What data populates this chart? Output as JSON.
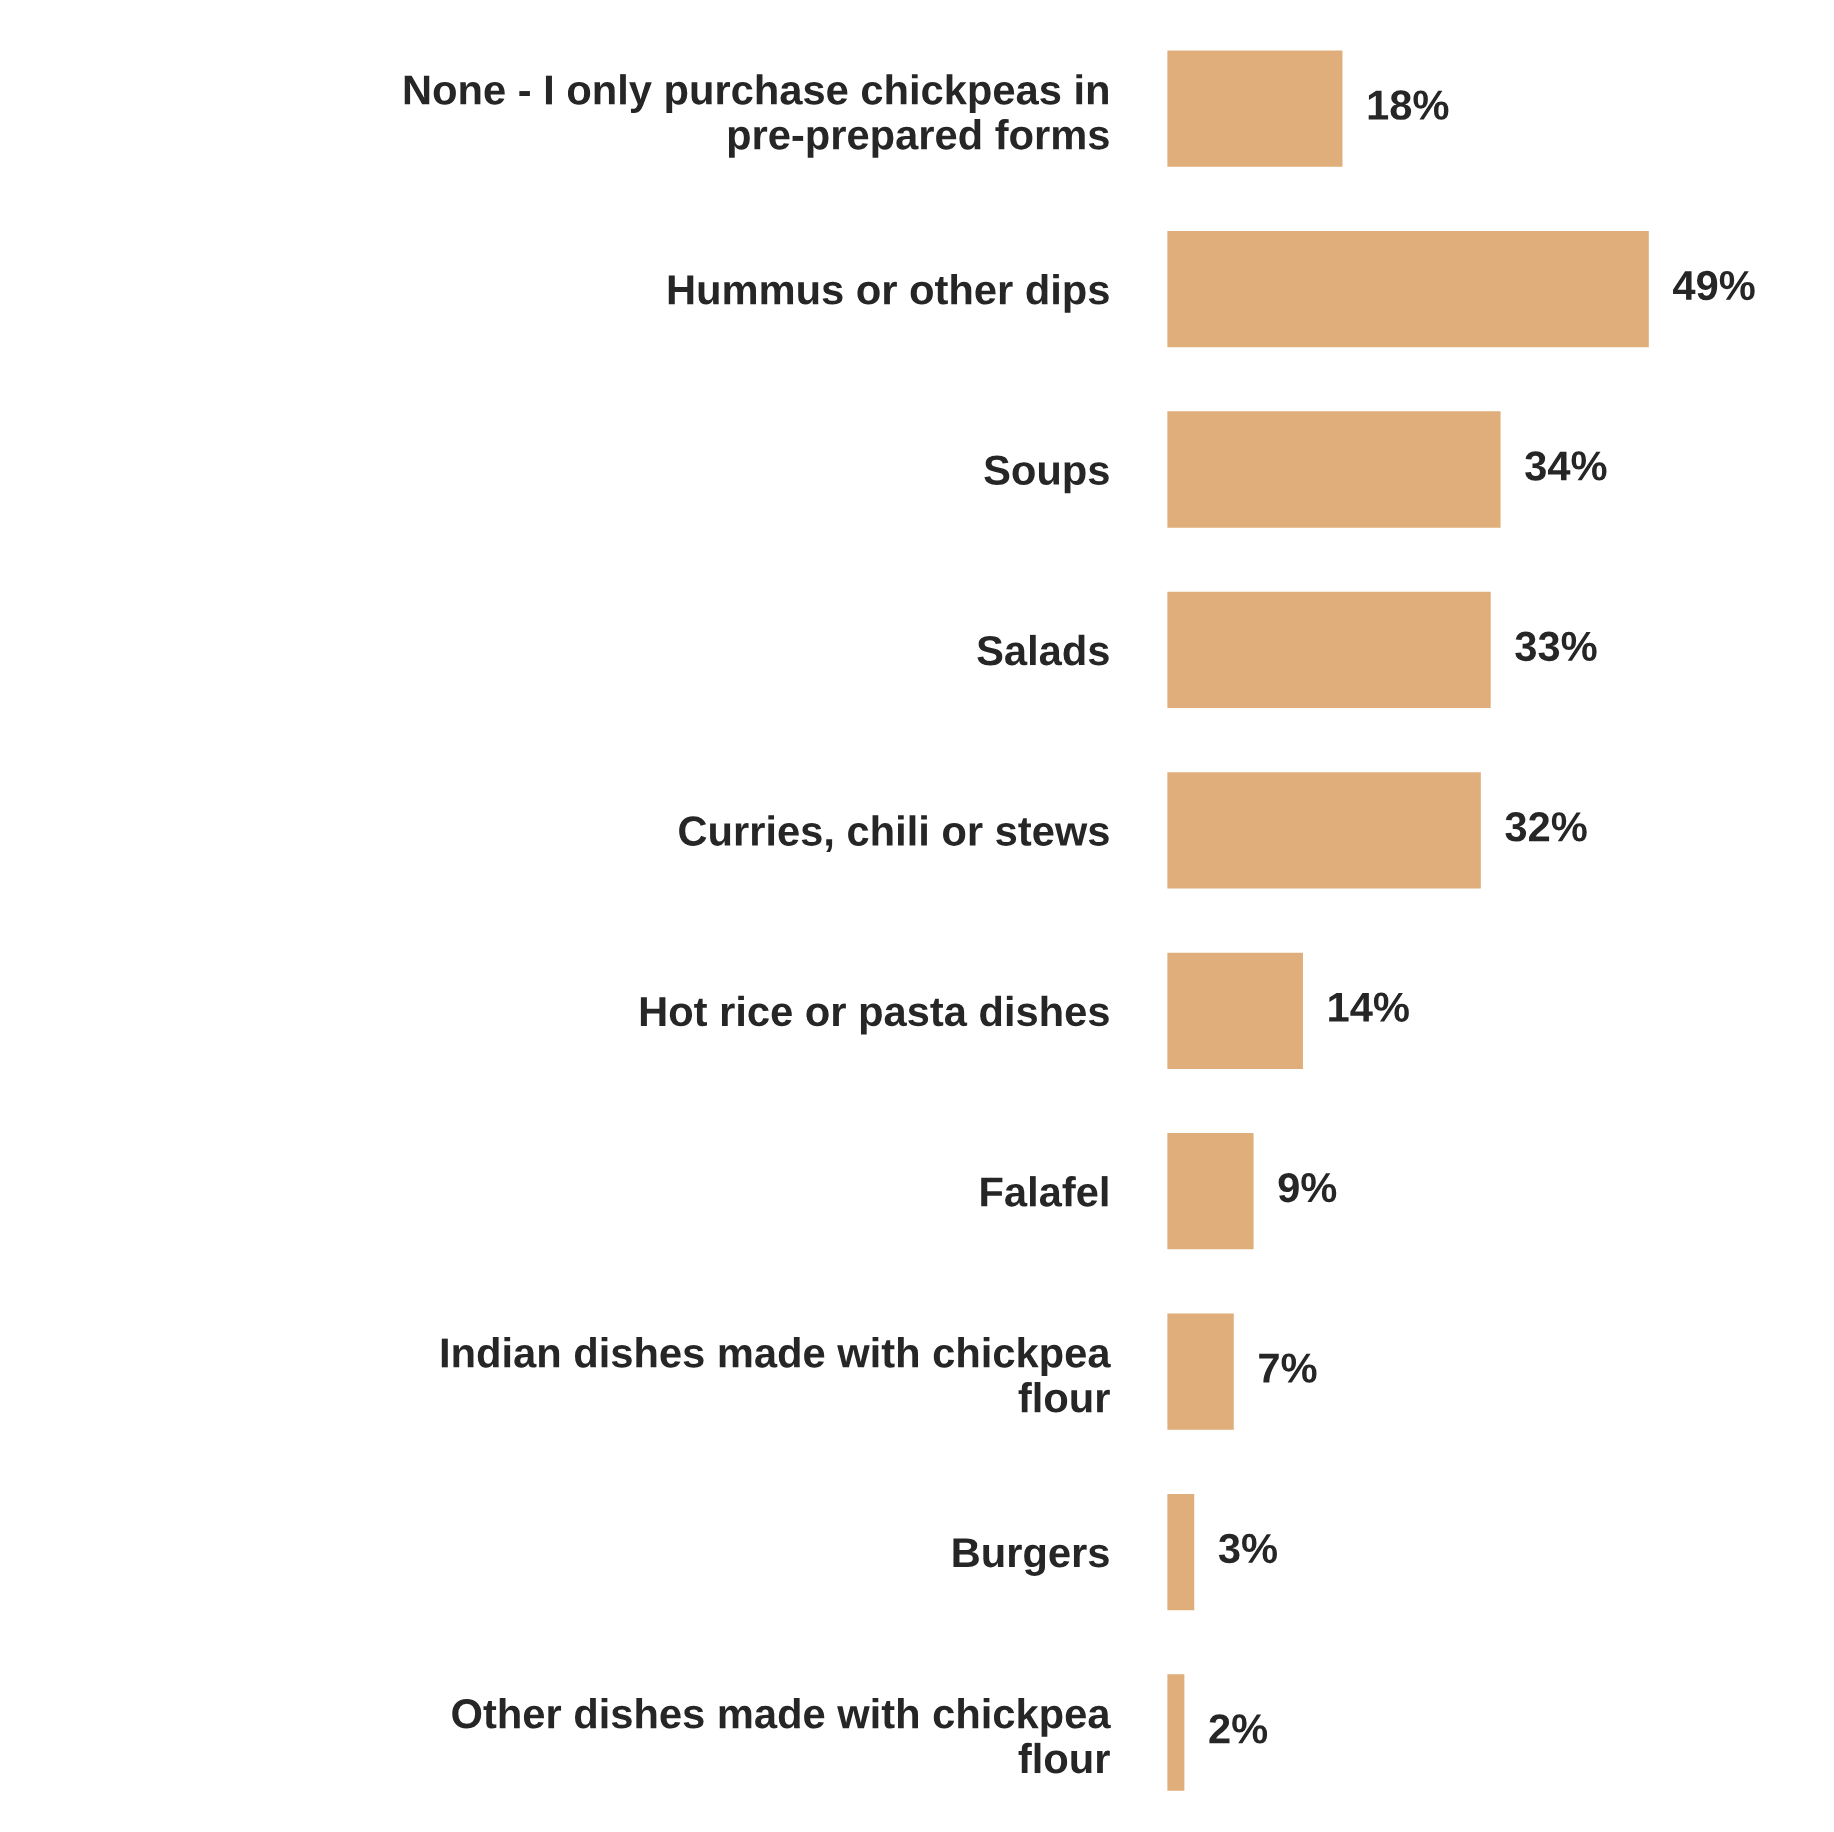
{
  "chart_data": {
    "type": "bar",
    "orientation": "horizontal",
    "categories": [
      "None - I only purchase chickpeas in\npre-prepared forms",
      "Hummus or other dips",
      "Soups",
      "Salads",
      "Curries, chili or stews",
      "Hot rice or pasta dishes",
      "Falafel",
      "Indian dishes made with chickpea\nflour",
      "Burgers",
      "Other dishes made with chickpea\nflour"
    ],
    "values": [
      18,
      49,
      34,
      33,
      32,
      14,
      9,
      7,
      3,
      2
    ],
    "value_labels": [
      "18%",
      "49%",
      "34%",
      "33%",
      "32%",
      "14%",
      "9%",
      "7%",
      "3%",
      "2%"
    ],
    "color": "#dfae7a",
    "grid": false,
    "legend": false
  }
}
